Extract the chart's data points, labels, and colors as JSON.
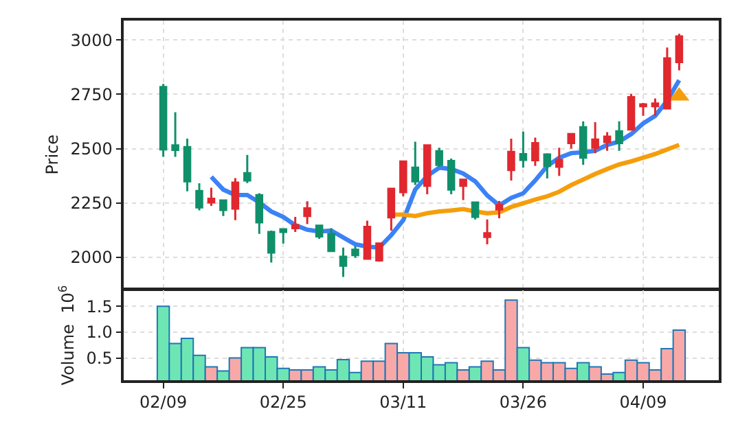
{
  "chart_data": [
    {
      "type": "candlestick",
      "ylabel": "Price",
      "categories": [
        null,
        null,
        null,
        null,
        null,
        null,
        null,
        null,
        null,
        null,
        null,
        null,
        null,
        null,
        null,
        null,
        null,
        null,
        null,
        null,
        null,
        null,
        null,
        null,
        null,
        null,
        null,
        null,
        null,
        null,
        null,
        null,
        null,
        null,
        null,
        null,
        null,
        null,
        null,
        null,
        null,
        null,
        null,
        null
      ],
      "ohlc": [
        [
          2784,
          2798,
          2462,
          2496
        ],
        [
          2515,
          2668,
          2462,
          2494
        ],
        [
          2507,
          2546,
          2303,
          2349
        ],
        [
          2305,
          2340,
          2215,
          2229
        ],
        [
          2252,
          2320,
          2236,
          2269
        ],
        [
          2261,
          2261,
          2189,
          2217
        ],
        [
          2223,
          2364,
          2170,
          2343
        ],
        [
          2387,
          2471,
          2341,
          2353
        ],
        [
          2286,
          2294,
          2107,
          2160
        ],
        [
          2116,
          2122,
          1975,
          2021
        ],
        [
          2128,
          2128,
          2063,
          2116
        ],
        [
          2133,
          2185,
          2116,
          2147
        ],
        [
          2189,
          2257,
          2152,
          2225
        ],
        [
          2145,
          2149,
          2084,
          2095
        ],
        [
          2107,
          2133,
          2028,
          2028
        ],
        [
          2002,
          2044,
          1908,
          1960
        ],
        [
          2034,
          2049,
          1996,
          2009
        ],
        [
          1992,
          2168,
          1992,
          2139
        ],
        [
          1984,
          2063,
          1979,
          2063
        ],
        [
          2183,
          2315,
          2122,
          2315
        ],
        [
          2299,
          2441,
          2280,
          2441
        ],
        [
          2412,
          2532,
          2332,
          2349
        ],
        [
          2328,
          2515,
          2290,
          2515
        ],
        [
          2488,
          2504,
          2416,
          2425
        ],
        [
          2443,
          2454,
          2290,
          2311
        ],
        [
          2328,
          2357,
          2263,
          2357
        ],
        [
          2252,
          2252,
          2173,
          2185
        ],
        [
          2093,
          2173,
          2059,
          2110
        ],
        [
          2219,
          2259,
          2179,
          2240
        ],
        [
          2401,
          2546,
          2353,
          2485
        ],
        [
          2475,
          2578,
          2412,
          2448
        ],
        [
          2446,
          2551,
          2420,
          2525
        ],
        [
          2473,
          2479,
          2362,
          2420
        ],
        [
          2416,
          2504,
          2374,
          2448
        ],
        [
          2525,
          2567,
          2500,
          2567
        ],
        [
          2599,
          2626,
          2425,
          2458
        ],
        [
          2504,
          2622,
          2479,
          2542
        ],
        [
          2530,
          2576,
          2490,
          2555
        ],
        [
          2580,
          2626,
          2490,
          2525
        ],
        [
          2588,
          2752,
          2584,
          2737
        ],
        [
          2695,
          2710,
          2651,
          2704
        ],
        [
          2695,
          2731,
          2651,
          2708
        ],
        [
          2685,
          2966,
          2685,
          2916
        ],
        [
          2899,
          3029,
          2861,
          3017
        ]
      ],
      "colors": [
        "#10906a",
        "#10906a",
        "#10906a",
        "#10906a",
        "#e0282e",
        "#10906a",
        "#e0282e",
        "#10906a",
        "#10906a",
        "#10906a",
        "#10906a",
        "#e0282e",
        "#e0282e",
        "#10906a",
        "#10906a",
        "#10906a",
        "#10906a",
        "#e0282e",
        "#e0282e",
        "#e0282e",
        "#e0282e",
        "#10906a",
        "#e0282e",
        "#10906a",
        "#10906a",
        "#e0282e",
        "#10906a",
        "#e0282e",
        "#e0282e",
        "#e0282e",
        "#10906a",
        "#e0282e",
        "#10906a",
        "#e0282e",
        "#e0282e",
        "#10906a",
        "#e0282e",
        "#e0282e",
        "#10906a",
        "#e0282e",
        "#e0282e",
        "#e0282e",
        "#e0282e",
        "#e0282e"
      ],
      "series": [
        {
          "type": "line",
          "color": "#3b82f6",
          "values": [
            null,
            null,
            null,
            null,
            2370,
            2311,
            2286,
            2286,
            2252,
            2210,
            2185,
            2147,
            2126,
            2118,
            2122,
            2090,
            2059,
            2048,
            2044,
            2101,
            2170,
            2311,
            2374,
            2412,
            2406,
            2385,
            2349,
            2284,
            2238,
            2273,
            2294,
            2353,
            2420,
            2458,
            2479,
            2483,
            2490,
            2517,
            2532,
            2567,
            2616,
            2651,
            2721,
            2815
          ]
        },
        {
          "type": "line",
          "color": "#f59e0b",
          "values": [
            null,
            null,
            null,
            null,
            null,
            null,
            null,
            null,
            null,
            null,
            null,
            null,
            null,
            null,
            null,
            null,
            null,
            null,
            null,
            2196,
            2196,
            2189,
            2202,
            2210,
            2215,
            2221,
            2210,
            2202,
            2206,
            2231,
            2248,
            2265,
            2280,
            2301,
            2332,
            2357,
            2383,
            2406,
            2427,
            2441,
            2458,
            2475,
            2496,
            2517
          ]
        },
        {
          "type": "scatter",
          "marker": "triangle",
          "color": "#f59e0b",
          "values": [
            null,
            null,
            null,
            null,
            null,
            null,
            null,
            null,
            null,
            null,
            null,
            null,
            null,
            null,
            null,
            null,
            null,
            null,
            null,
            null,
            null,
            null,
            null,
            null,
            null,
            null,
            null,
            null,
            null,
            null,
            null,
            null,
            null,
            null,
            null,
            null,
            null,
            null,
            null,
            null,
            null,
            null,
            null,
            2742
          ]
        }
      ],
      "ylim": [
        1855,
        3090
      ],
      "yticks": [
        2000,
        2250,
        2500,
        2750,
        3000
      ],
      "grid": true,
      "tick_labels": "y"
    },
    {
      "type": "bar",
      "ylabel": "Volume  10$^{6}$",
      "categories": [
        "02/09",
        null,
        null,
        null,
        null,
        null,
        null,
        null,
        null,
        null,
        "02/25",
        null,
        null,
        null,
        null,
        null,
        null,
        null,
        null,
        null,
        "03/11",
        null,
        null,
        null,
        null,
        null,
        null,
        null,
        null,
        null,
        "03/26",
        null,
        null,
        null,
        null,
        null,
        null,
        null,
        null,
        null,
        "04/09",
        null,
        null,
        null
      ],
      "values": [
        1.5,
        0.78,
        0.88,
        0.55,
        0.33,
        0.25,
        0.5,
        0.7,
        0.7,
        0.52,
        0.3,
        0.27,
        0.27,
        0.33,
        0.27,
        0.47,
        0.22,
        0.44,
        0.44,
        0.78,
        0.6,
        0.6,
        0.52,
        0.37,
        0.41,
        0.27,
        0.33,
        0.44,
        0.27,
        1.62,
        0.7,
        0.46,
        0.41,
        0.41,
        0.3,
        0.41,
        0.33,
        0.19,
        0.22,
        0.46,
        0.41,
        0.27,
        0.68,
        1.04
      ],
      "colors": [
        "#6ee6b4",
        "#6ee6b4",
        "#6ee6b4",
        "#6ee6b4",
        "#f9a8a8",
        "#6ee6b4",
        "#f9a8a8",
        "#6ee6b4",
        "#6ee6b4",
        "#6ee6b4",
        "#6ee6b4",
        "#f9a8a8",
        "#f9a8a8",
        "#6ee6b4",
        "#6ee6b4",
        "#6ee6b4",
        "#6ee6b4",
        "#f9a8a8",
        "#f9a8a8",
        "#f9a8a8",
        "#f9a8a8",
        "#6ee6b4",
        "#6ee6b4",
        "#6ee6b4",
        "#6ee6b4",
        "#f9a8a8",
        "#6ee6b4",
        "#f9a8a8",
        "#f9a8a8",
        "#f9a8a8",
        "#6ee6b4",
        "#f9a8a8",
        "#f9a8a8",
        "#f9a8a8",
        "#f9a8a8",
        "#6ee6b4",
        "#f9a8a8",
        "#f9a8a8",
        "#6ee6b4",
        "#f9a8a8",
        "#f9a8a8",
        "#f9a8a8",
        "#f9a8a8",
        "#f9a8a8"
      ],
      "ylim": [
        0.07,
        1.81
      ],
      "yticks": [
        {
          "value": 0.5,
          "label": "0.5"
        },
        {
          "value": 1.0,
          "label": "1.0"
        },
        {
          "value": 1.5,
          "label": "1.5"
        }
      ],
      "grid": true
    }
  ]
}
